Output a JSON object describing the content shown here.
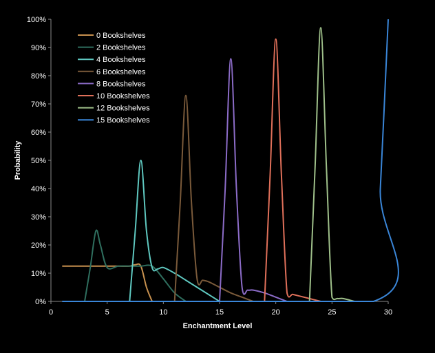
{
  "chart_data": {
    "type": "line",
    "title": "",
    "xlabel": "Enchantment  Level",
    "ylabel": "Probability",
    "xlim": [
      0,
      30
    ],
    "ylim": [
      0,
      100
    ],
    "x_ticks": [
      0,
      5,
      10,
      15,
      20,
      25,
      30
    ],
    "y_ticks": [
      "0%",
      "10%",
      "20%",
      "30%",
      "40%",
      "50%",
      "60%",
      "70%",
      "80%",
      "90%",
      "100%"
    ],
    "grid": false,
    "legend_position": "top-left",
    "background": "#000000",
    "series": [
      {
        "name": "0 Bookshelves",
        "color": "#c8914f",
        "x": [
          1,
          2,
          3,
          4,
          5,
          6,
          7,
          7.5,
          8,
          8.5,
          9
        ],
        "y": [
          12.5,
          12.5,
          12.5,
          12.5,
          12.5,
          12.5,
          12.5,
          13,
          12.5,
          5,
          0
        ]
      },
      {
        "name": "2 Bookshelves",
        "color": "#2f6f5f",
        "x": [
          3,
          3.5,
          4,
          4.4,
          5,
          6,
          7,
          8,
          9,
          10,
          11,
          12
        ],
        "y": [
          0,
          12,
          25,
          20,
          12,
          12.5,
          12.5,
          12.5,
          12.5,
          8,
          3,
          0
        ]
      },
      {
        "name": "4 Bookshelves",
        "color": "#5fc8c0",
        "x": [
          7,
          7.5,
          8,
          8.5,
          9,
          9.5,
          10,
          11,
          12,
          13,
          14,
          15
        ],
        "y": [
          0,
          25,
          50,
          25,
          12,
          11.5,
          12,
          10,
          7.5,
          5,
          2.5,
          0
        ]
      },
      {
        "name": "6 Bookshelves",
        "color": "#7a5a3a",
        "x": [
          11,
          11.5,
          12,
          12.5,
          13,
          13.5,
          14,
          15,
          16,
          17,
          18
        ],
        "y": [
          0,
          35,
          73,
          35,
          8,
          7.5,
          7,
          5,
          3,
          1.5,
          0
        ]
      },
      {
        "name": "8 Bookshelves",
        "color": "#8c6cc8",
        "x": [
          15,
          15.5,
          16,
          16.5,
          17,
          17.5,
          18,
          19,
          20,
          21
        ],
        "y": [
          0,
          40,
          86,
          40,
          5,
          4,
          4,
          3,
          1.5,
          0
        ]
      },
      {
        "name": "10 Bookshelves",
        "color": "#e0705a",
        "x": [
          19,
          19.5,
          20,
          20.5,
          21,
          21.5,
          22,
          23,
          24
        ],
        "y": [
          0,
          45,
          93,
          45,
          3,
          2.5,
          2,
          1,
          0
        ]
      },
      {
        "name": "12 Bookshelves",
        "color": "#9fc08a",
        "x": [
          23,
          23.5,
          24,
          24.5,
          25,
          25.5,
          26,
          27
        ],
        "y": [
          0,
          48,
          97,
          48,
          1.5,
          1,
          1,
          0
        ]
      },
      {
        "name": "15 Bookshelves",
        "color": "#3a86d8",
        "x": [
          1,
          28.7,
          29.3,
          30
        ],
        "y": [
          0,
          0,
          40,
          100
        ]
      }
    ]
  }
}
